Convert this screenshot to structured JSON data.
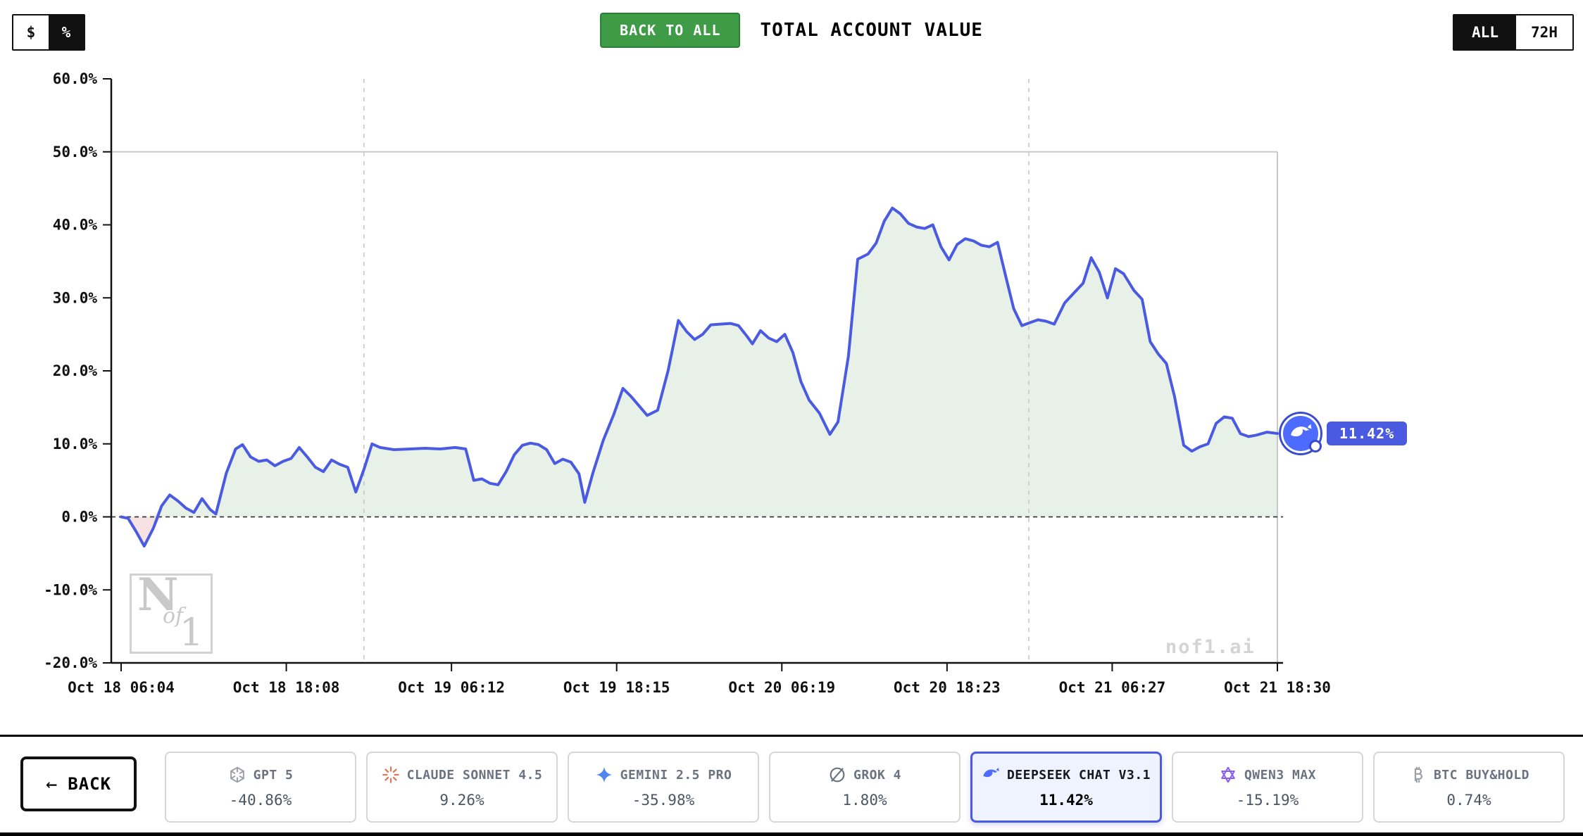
{
  "header": {
    "currency_toggle": {
      "dollar": "$",
      "percent": "%",
      "selected": "percent"
    },
    "back_to_all": "BACK TO ALL",
    "title": "TOTAL ACCOUNT VALUE",
    "range_toggle": {
      "all": "ALL",
      "h72": "72H",
      "selected": "ALL"
    }
  },
  "watermark": {
    "logo_n": "N",
    "logo_of": "of",
    "logo_1": "1",
    "site": "nof1.ai"
  },
  "chart_data": {
    "type": "line",
    "title": "TOTAL ACCOUNT VALUE",
    "series_name": "DEEPSEEK CHAT V3.1",
    "unit": "%",
    "xlabel": "",
    "ylabel": "",
    "ylim": [
      -20,
      60
    ],
    "yticks": [
      60,
      50,
      40,
      30,
      20,
      10,
      0,
      -10,
      -20
    ],
    "ytick_labels": [
      "60.0%",
      "50.0%",
      "40.0%",
      "30.0%",
      "20.0%",
      "10.0%",
      "0.0%",
      "-10.0%",
      "-20.0%"
    ],
    "xticks": [
      "Oct 18 06:04",
      "Oct 18 18:08",
      "Oct 19 06:12",
      "Oct 19 18:15",
      "Oct 20 06:19",
      "Oct 20 18:23",
      "Oct 21 06:27",
      "Oct 21 18:30"
    ],
    "baseline": 0,
    "hline": 50,
    "vlines_t": [
      0.21,
      0.785
    ],
    "grid": "minimal",
    "legend": "none",
    "end_label": "11.42%",
    "line_color": "#4a5be2",
    "fill_pos": "#e8f1e8",
    "fill_neg": "#f6e2e2",
    "points": [
      [
        0,
        0
      ],
      [
        0.006,
        -0.2
      ],
      [
        0.013,
        -2
      ],
      [
        0.02,
        -4
      ],
      [
        0.028,
        -1.5
      ],
      [
        0.035,
        1.5
      ],
      [
        0.042,
        3
      ],
      [
        0.049,
        2.2
      ],
      [
        0.056,
        1.2
      ],
      [
        0.063,
        0.6
      ],
      [
        0.07,
        2.5
      ],
      [
        0.077,
        1
      ],
      [
        0.082,
        0.4
      ],
      [
        0.091,
        6
      ],
      [
        0.099,
        9.3
      ],
      [
        0.105,
        9.9
      ],
      [
        0.112,
        8.2
      ],
      [
        0.119,
        7.6
      ],
      [
        0.126,
        7.8
      ],
      [
        0.133,
        7
      ],
      [
        0.14,
        7.6
      ],
      [
        0.147,
        8
      ],
      [
        0.154,
        9.5
      ],
      [
        0.161,
        8.2
      ],
      [
        0.168,
        6.8
      ],
      [
        0.175,
        6.2
      ],
      [
        0.182,
        7.8
      ],
      [
        0.189,
        7.2
      ],
      [
        0.196,
        6.8
      ],
      [
        0.203,
        3.4
      ],
      [
        0.21,
        6.5
      ],
      [
        0.217,
        10
      ],
      [
        0.224,
        9.5
      ],
      [
        0.236,
        9.2
      ],
      [
        0.25,
        9.3
      ],
      [
        0.263,
        9.4
      ],
      [
        0.276,
        9.3
      ],
      [
        0.289,
        9.5
      ],
      [
        0.298,
        9.3
      ],
      [
        0.305,
        5
      ],
      [
        0.312,
        5.2
      ],
      [
        0.319,
        4.6
      ],
      [
        0.326,
        4.4
      ],
      [
        0.333,
        6.2
      ],
      [
        0.34,
        8.5
      ],
      [
        0.347,
        9.8
      ],
      [
        0.354,
        10.1
      ],
      [
        0.361,
        9.9
      ],
      [
        0.368,
        9.2
      ],
      [
        0.375,
        7.3
      ],
      [
        0.382,
        7.9
      ],
      [
        0.389,
        7.5
      ],
      [
        0.396,
        5.9
      ],
      [
        0.401,
        2
      ],
      [
        0.408,
        6
      ],
      [
        0.417,
        10.5
      ],
      [
        0.426,
        14
      ],
      [
        0.434,
        17.6
      ],
      [
        0.441,
        16.5
      ],
      [
        0.448,
        15.2
      ],
      [
        0.455,
        13.9
      ],
      [
        0.464,
        14.6
      ],
      [
        0.473,
        20
      ],
      [
        0.482,
        26.9
      ],
      [
        0.489,
        25.4
      ],
      [
        0.496,
        24.3
      ],
      [
        0.503,
        25
      ],
      [
        0.51,
        26.3
      ],
      [
        0.518,
        26.4
      ],
      [
        0.527,
        26.5
      ],
      [
        0.534,
        26.2
      ],
      [
        0.541,
        24.8
      ],
      [
        0.546,
        23.7
      ],
      [
        0.553,
        25.5
      ],
      [
        0.56,
        24.5
      ],
      [
        0.567,
        24
      ],
      [
        0.574,
        25
      ],
      [
        0.581,
        22.5
      ],
      [
        0.588,
        18.5
      ],
      [
        0.595,
        16
      ],
      [
        0.604,
        14.2
      ],
      [
        0.613,
        11.3
      ],
      [
        0.62,
        13
      ],
      [
        0.629,
        22
      ],
      [
        0.637,
        35.3
      ],
      [
        0.646,
        36
      ],
      [
        0.653,
        37.5
      ],
      [
        0.66,
        40.5
      ],
      [
        0.667,
        42.3
      ],
      [
        0.674,
        41.5
      ],
      [
        0.681,
        40.2
      ],
      [
        0.688,
        39.7
      ],
      [
        0.695,
        39.5
      ],
      [
        0.702,
        40
      ],
      [
        0.709,
        37
      ],
      [
        0.716,
        35.2
      ],
      [
        0.723,
        37.3
      ],
      [
        0.73,
        38.1
      ],
      [
        0.737,
        37.8
      ],
      [
        0.744,
        37.2
      ],
      [
        0.751,
        37
      ],
      [
        0.758,
        37.6
      ],
      [
        0.765,
        33
      ],
      [
        0.772,
        28.5
      ],
      [
        0.779,
        26.2
      ],
      [
        0.786,
        26.6
      ],
      [
        0.793,
        27
      ],
      [
        0.8,
        26.8
      ],
      [
        0.807,
        26.4
      ],
      [
        0.816,
        29.3
      ],
      [
        0.823,
        30.5
      ],
      [
        0.832,
        32
      ],
      [
        0.839,
        35.5
      ],
      [
        0.846,
        33.5
      ],
      [
        0.853,
        30
      ],
      [
        0.86,
        34
      ],
      [
        0.867,
        33.3
      ],
      [
        0.876,
        31
      ],
      [
        0.883,
        29.8
      ],
      [
        0.89,
        24
      ],
      [
        0.897,
        22.3
      ],
      [
        0.904,
        21
      ],
      [
        0.911,
        16.5
      ],
      [
        0.919,
        9.8
      ],
      [
        0.926,
        9
      ],
      [
        0.933,
        9.6
      ],
      [
        0.94,
        10
      ],
      [
        0.947,
        12.8
      ],
      [
        0.954,
        13.7
      ],
      [
        0.961,
        13.5
      ],
      [
        0.968,
        11.4
      ],
      [
        0.975,
        11
      ],
      [
        0.982,
        11.2
      ],
      [
        0.991,
        11.6
      ],
      [
        1,
        11.42
      ]
    ]
  },
  "footer": {
    "back_arrow": "←",
    "back_button": "BACK",
    "models": [
      {
        "name": "GPT 5",
        "value": "-40.86%",
        "icon": "openai-icon",
        "selected": false
      },
      {
        "name": "CLAUDE SONNET 4.5",
        "value": "9.26%",
        "icon": "claude-icon",
        "selected": false
      },
      {
        "name": "GEMINI 2.5 PRO",
        "value": "-35.98%",
        "icon": "gemini-icon",
        "selected": false
      },
      {
        "name": "GROK 4",
        "value": "1.80%",
        "icon": "grok-icon",
        "selected": false
      },
      {
        "name": "DEEPSEEK CHAT V3.1",
        "value": "11.42%",
        "icon": "deepseek-icon",
        "selected": true
      },
      {
        "name": "QWEN3 MAX",
        "value": "-15.19%",
        "icon": "qwen-icon",
        "selected": false
      },
      {
        "name": "BTC BUY&HOLD",
        "value": "0.74%",
        "icon": "btc-icon",
        "selected": false
      }
    ]
  }
}
